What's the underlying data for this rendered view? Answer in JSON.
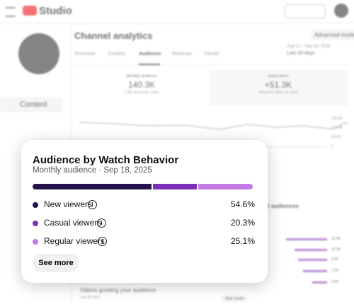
{
  "header": {
    "app": "Studio"
  },
  "sidebar": {
    "active": "Content"
  },
  "analytics": {
    "title": "Channel analytics",
    "advanced": "Advanced mode",
    "tabs": [
      "Overview",
      "Content",
      "Audience",
      "Revenue",
      "Trends"
    ],
    "date_range": "Aug 21 – Sep 18, 2025",
    "period": "Last 28 days",
    "stats": [
      {
        "label": "Monthly audience",
        "value": "140.3K",
        "note": "2.9K more than usual"
      },
      {
        "label": "Subscribers",
        "value": "+51.3K",
        "note": "about the same as usual"
      }
    ],
    "axis": [
      "150.0K",
      "100.0K",
      "50.0K",
      "0"
    ],
    "videos_title": "Videos growing your audience",
    "videos_period": "Last 90 days",
    "audiences_title": "t audiences",
    "audience_bars": [
      {
        "value": 12900,
        "label": "12.9K"
      },
      {
        "value": 10200,
        "label": "10.2K"
      },
      {
        "value": 9200,
        "label": "9.2K"
      },
      {
        "value": 7500,
        "label": "7.5K"
      },
      {
        "value": 4600,
        "label": "4.6K"
      }
    ],
    "see_more": "See more"
  },
  "card": {
    "title": "Audience by Watch Behavior",
    "subtitle": "Monthly audience · Sep 18, 2025",
    "segments": [
      {
        "name": "New viewers",
        "value": 54.6,
        "label": "54.6%",
        "color": "#24134a"
      },
      {
        "name": "Casual viewers",
        "value": 20.3,
        "label": "20.3%",
        "color": "#7b2fb5"
      },
      {
        "name": "Regular viewers",
        "value": 25.1,
        "label": "25.1%",
        "color": "#c47be6"
      }
    ],
    "button": "See more"
  }
}
